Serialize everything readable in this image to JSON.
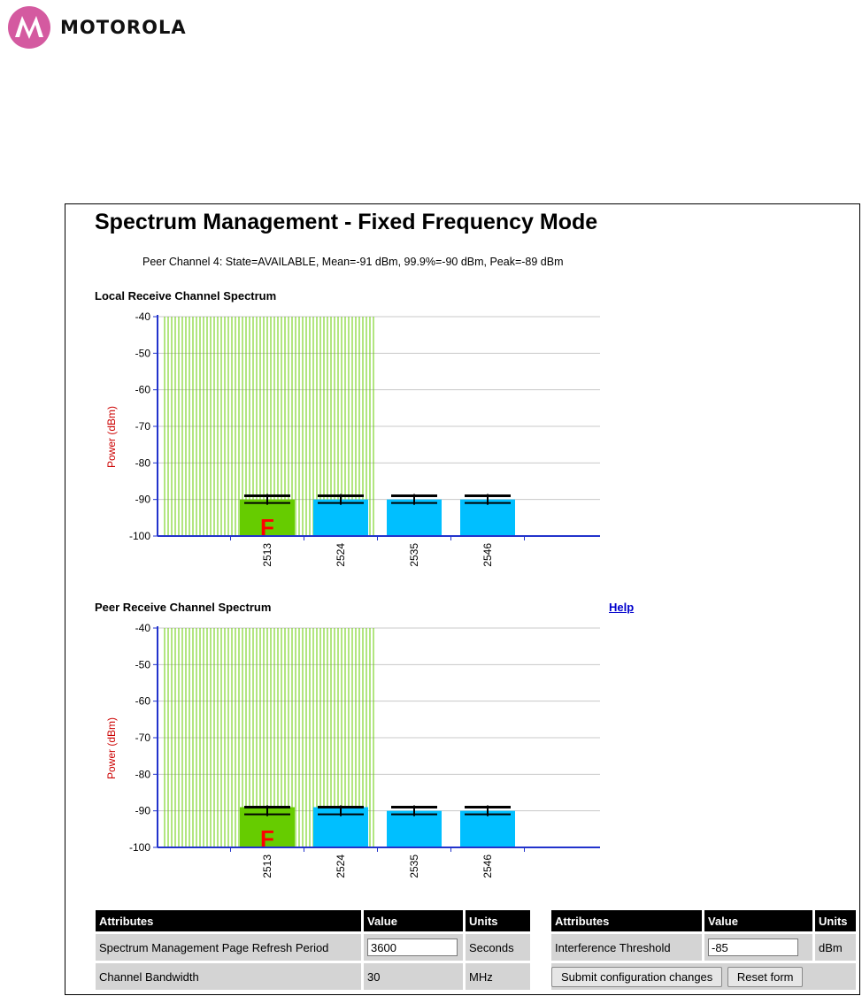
{
  "header": {
    "brand": "MOTOROLA",
    "brand_color": "#d45aa0"
  },
  "page": {
    "title": "Spectrum Management - Fixed Frequency Mode",
    "peer_info": "Peer Channel 4: State=AVAILABLE, Mean=-91 dBm, 99.9%=-90 dBm, Peak=-89 dBm",
    "help_label": "Help"
  },
  "chart_data": [
    {
      "type": "bar",
      "title": "Local Receive Channel Spectrum",
      "ylabel": "Power (dBm)",
      "ylim": [
        -100,
        -40
      ],
      "yticks": [
        "-40",
        "-50",
        "-60",
        "-70",
        "-80",
        "-90",
        "-100"
      ],
      "categories": [
        "2513",
        "2524",
        "2535",
        "2546"
      ],
      "values": [
        -90,
        -90,
        -90,
        -90
      ],
      "peak": [
        -89,
        -89,
        -89,
        -89
      ],
      "mean": [
        -90,
        -90,
        -90,
        -90
      ],
      "active_channel": "2513",
      "active_marker": "F",
      "active_color": "#66cc00",
      "bar_color": "#00bfff",
      "barred_color": "#66cc00",
      "barred_range": [
        "below 2513",
        "2524"
      ],
      "grid": true
    },
    {
      "type": "bar",
      "title": "Peer Receive Channel Spectrum",
      "ylabel": "Power (dBm)",
      "ylim": [
        -100,
        -40
      ],
      "yticks": [
        "-40",
        "-50",
        "-60",
        "-70",
        "-80",
        "-90",
        "-100"
      ],
      "categories": [
        "2513",
        "2524",
        "2535",
        "2546"
      ],
      "values": [
        -89,
        -89,
        -90,
        -90
      ],
      "peak": [
        -89,
        -89,
        -89,
        -89
      ],
      "mean": [
        -90,
        -90,
        -90,
        -90
      ],
      "active_channel": "2513",
      "active_marker": "F",
      "active_color": "#66cc00",
      "bar_color": "#00bfff",
      "barred_color": "#66cc00",
      "barred_range": [
        "below 2513",
        "2524"
      ],
      "grid": true
    }
  ],
  "table_left": {
    "headers": [
      "Attributes",
      "Value",
      "Units"
    ],
    "rows": [
      {
        "attribute": "Spectrum Management Page Refresh Period",
        "value": "3600",
        "units": "Seconds"
      },
      {
        "attribute": "Channel Bandwidth",
        "value": "30",
        "units": "MHz"
      }
    ]
  },
  "table_right": {
    "headers": [
      "Attributes",
      "Value",
      "Units"
    ],
    "rows": [
      {
        "attribute": "Interference Threshold",
        "value": "-85",
        "units": "dBm"
      }
    ],
    "submit_label": "Submit configuration changes",
    "reset_label": "Reset form"
  }
}
